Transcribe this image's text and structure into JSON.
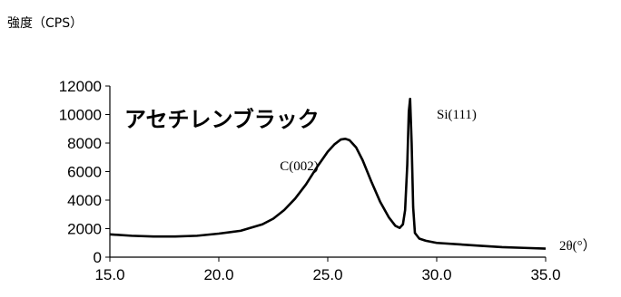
{
  "chart_data": {
    "type": "line",
    "title": "アセチレンブラック",
    "ylabel": "強度（CPS）",
    "xlabel": "2θ(°）",
    "xlim": [
      15.0,
      35.0
    ],
    "ylim": [
      0,
      12000
    ],
    "x_ticks": [
      "15.0",
      "20.0",
      "25.0",
      "30.0",
      "35.0"
    ],
    "y_ticks": [
      "0",
      "2000",
      "4000",
      "6000",
      "8000",
      "10000",
      "12000"
    ],
    "grid": false,
    "annotations": [
      {
        "text": "C(002)",
        "x": 22.8,
        "y": 6100
      },
      {
        "text": "Si(111)",
        "x": 30.0,
        "y": 9700
      }
    ],
    "series": [
      {
        "color": "#000000",
        "x": [
          15.0,
          16.0,
          17.0,
          18.0,
          19.0,
          20.0,
          21.0,
          22.0,
          22.5,
          23.0,
          23.5,
          24.0,
          24.5,
          25.0,
          25.3,
          25.6,
          25.8,
          26.0,
          26.3,
          26.6,
          27.0,
          27.4,
          27.8,
          28.1,
          28.3,
          28.45,
          28.55,
          28.65,
          28.72,
          28.78,
          28.85,
          28.92,
          29.0,
          29.2,
          29.5,
          30.0,
          31.0,
          32.0,
          33.0,
          34.0,
          35.0
        ],
        "y": [
          1600,
          1500,
          1450,
          1450,
          1500,
          1650,
          1850,
          2300,
          2700,
          3300,
          4100,
          5100,
          6300,
          7400,
          7900,
          8250,
          8300,
          8200,
          7700,
          6800,
          5300,
          3900,
          2800,
          2200,
          2050,
          2300,
          3300,
          6500,
          10200,
          11100,
          8000,
          3500,
          1700,
          1300,
          1150,
          1000,
          900,
          800,
          700,
          650,
          600
        ]
      }
    ]
  }
}
